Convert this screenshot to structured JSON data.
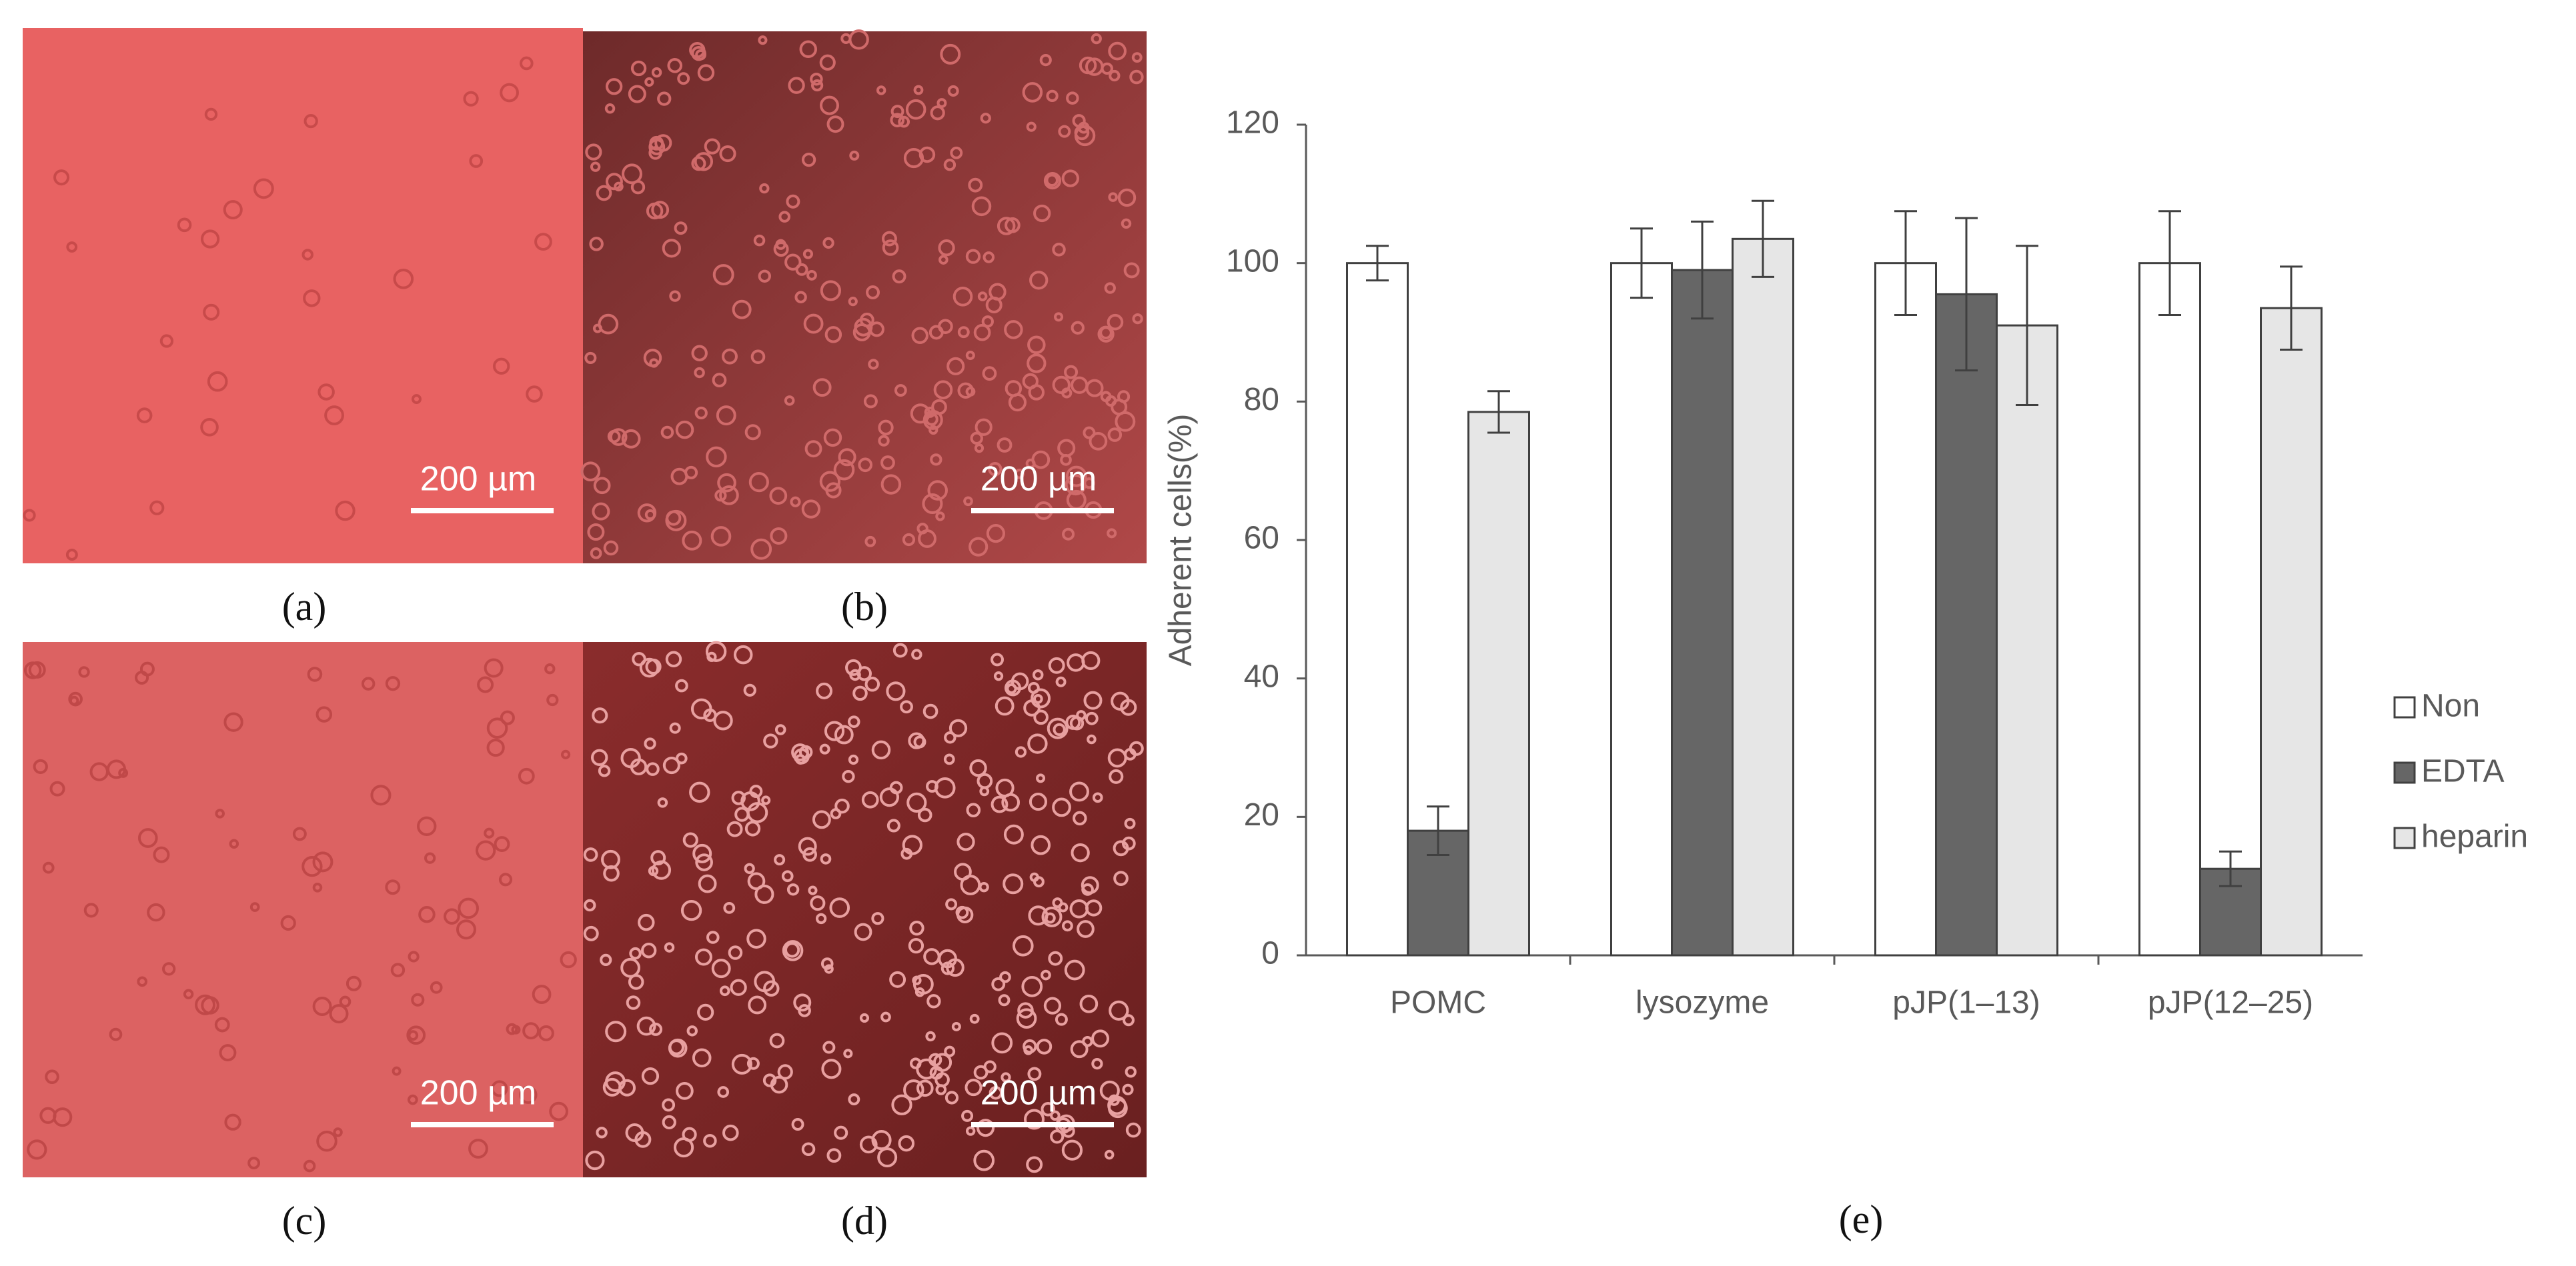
{
  "panels": [
    {
      "label": "(a)",
      "scale_bar": "200 µm"
    },
    {
      "label": "(b)",
      "scale_bar": "200 µm"
    },
    {
      "label": "(c)",
      "scale_bar": "200 µm"
    },
    {
      "label": "(d)",
      "scale_bar": "200 µm"
    }
  ],
  "chart_data": {
    "type": "bar",
    "panel_label": "(e)",
    "y_label": "Adherent cells(%)",
    "categories": [
      "POMC",
      "lysozyme",
      "pJP(1–13)",
      "pJP(12–25)"
    ],
    "series": [
      {
        "name": "Non",
        "color": "#ffffff",
        "values": [
          100,
          100,
          100,
          100
        ],
        "errors": [
          2.5,
          5,
          7.5,
          7.5
        ]
      },
      {
        "name": "EDTA",
        "color": "#666666",
        "values": [
          18,
          99,
          95.5,
          12.5
        ],
        "errors": [
          3.5,
          7,
          11,
          2.5
        ]
      },
      {
        "name": "heparin",
        "color": "#e6e6e6",
        "values": [
          78.5,
          103.5,
          91,
          93.5
        ],
        "errors": [
          3,
          5.5,
          11.5,
          6
        ]
      }
    ],
    "ylim": [
      0,
      120
    ],
    "yticks": [
      0,
      20,
      40,
      60,
      80,
      100,
      120
    ],
    "legend": "right"
  }
}
